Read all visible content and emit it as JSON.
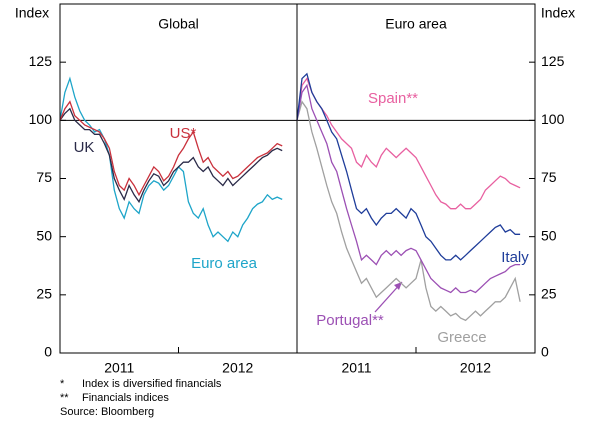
{
  "chart_data": [
    {
      "type": "line",
      "title": "Global",
      "ylabel": "Index",
      "x": [
        2011.0,
        2011.0417,
        2011.0833,
        2011.125,
        2011.1667,
        2011.2083,
        2011.25,
        2011.2917,
        2011.3333,
        2011.375,
        2011.4167,
        2011.4583,
        2011.5,
        2011.5417,
        2011.5833,
        2011.625,
        2011.6667,
        2011.7083,
        2011.75,
        2011.7917,
        2011.8333,
        2011.875,
        2011.9167,
        2011.9583,
        2012.0,
        2012.0417,
        2012.0833,
        2012.125,
        2012.1667,
        2012.2083,
        2012.25,
        2012.2917,
        2012.3333,
        2012.375,
        2012.4167,
        2012.4583,
        2012.5,
        2012.5417,
        2012.5833,
        2012.625,
        2012.6667,
        2012.7083,
        2012.75,
        2012.7917,
        2012.8333,
        2012.875
      ],
      "xlim": [
        2011,
        2013
      ],
      "xticks": [
        {
          "value": 2011.5,
          "label": "2011"
        },
        {
          "value": 2012.5,
          "label": "2012"
        }
      ],
      "ylim": [
        0,
        150
      ],
      "yticks": [
        0,
        25,
        50,
        75,
        100,
        125
      ],
      "hline": 100,
      "series": [
        {
          "name": "Euro area",
          "color": "#1ea5c9",
          "values": [
            100,
            112,
            118,
            110,
            104,
            100,
            98,
            95,
            96,
            92,
            85,
            70,
            62,
            58,
            65,
            62,
            60,
            68,
            72,
            74,
            73,
            70,
            72,
            76,
            80,
            78,
            65,
            60,
            58,
            62,
            55,
            50,
            52,
            50,
            48,
            52,
            50,
            55,
            58,
            62,
            64,
            65,
            68,
            66,
            67,
            66
          ]
        },
        {
          "name": "UK",
          "color": "#2a2a48",
          "values": [
            100,
            103,
            105,
            100,
            98,
            96,
            96,
            94,
            94,
            90,
            85,
            75,
            70,
            66,
            72,
            68,
            65,
            70,
            74,
            77,
            76,
            72,
            74,
            78,
            80,
            82,
            82,
            84,
            80,
            78,
            80,
            76,
            74,
            72,
            75,
            72,
            74,
            76,
            78,
            80,
            82,
            84,
            85,
            87,
            88,
            87
          ]
        },
        {
          "name": "US*",
          "color": "#c9313c",
          "values": [
            100,
            105,
            108,
            102,
            100,
            98,
            97,
            96,
            95,
            92,
            88,
            78,
            72,
            70,
            75,
            72,
            68,
            72,
            76,
            80,
            78,
            74,
            76,
            80,
            85,
            88,
            92,
            95,
            88,
            82,
            84,
            80,
            78,
            76,
            78,
            75,
            76,
            78,
            80,
            82,
            84,
            85,
            86,
            88,
            90,
            89
          ]
        }
      ]
    },
    {
      "type": "line",
      "title": "Euro area",
      "ylabel": "Index",
      "x": [
        2011.0,
        2011.0417,
        2011.0833,
        2011.125,
        2011.1667,
        2011.2083,
        2011.25,
        2011.2917,
        2011.3333,
        2011.375,
        2011.4167,
        2011.4583,
        2011.5,
        2011.5417,
        2011.5833,
        2011.625,
        2011.6667,
        2011.7083,
        2011.75,
        2011.7917,
        2011.8333,
        2011.875,
        2011.9167,
        2011.9583,
        2012.0,
        2012.0417,
        2012.0833,
        2012.125,
        2012.1667,
        2012.2083,
        2012.25,
        2012.2917,
        2012.3333,
        2012.375,
        2012.4167,
        2012.4583,
        2012.5,
        2012.5417,
        2012.5833,
        2012.625,
        2012.6667,
        2012.7083,
        2012.75,
        2012.7917,
        2012.8333,
        2012.875
      ],
      "xlim": [
        2011,
        2013
      ],
      "xticks": [
        {
          "value": 2011.5,
          "label": "2011"
        },
        {
          "value": 2012.5,
          "label": "2012"
        }
      ],
      "ylim": [
        0,
        150
      ],
      "yticks": [
        0,
        25,
        50,
        75,
        100,
        125
      ],
      "hline": 100,
      "series": [
        {
          "name": "Spain**",
          "color": "#e860a0",
          "values": [
            100,
            115,
            118,
            112,
            108,
            105,
            102,
            98,
            95,
            92,
            90,
            88,
            82,
            80,
            85,
            82,
            80,
            85,
            88,
            86,
            84,
            86,
            88,
            86,
            84,
            80,
            76,
            72,
            68,
            65,
            64,
            62,
            62,
            64,
            62,
            62,
            64,
            66,
            70,
            72,
            74,
            76,
            75,
            73,
            72,
            71
          ]
        },
        {
          "name": "Greece",
          "color": "#a0a0a0",
          "values": [
            100,
            108,
            105,
            95,
            88,
            80,
            72,
            65,
            60,
            52,
            45,
            40,
            35,
            30,
            32,
            28,
            24,
            26,
            28,
            30,
            32,
            30,
            28,
            30,
            32,
            40,
            28,
            20,
            18,
            20,
            18,
            16,
            17,
            15,
            14,
            16,
            18,
            16,
            18,
            20,
            22,
            22,
            24,
            28,
            32,
            22
          ]
        },
        {
          "name": "Portugal**",
          "color": "#9c50b4",
          "values": [
            100,
            112,
            115,
            105,
            100,
            95,
            90,
            82,
            78,
            70,
            62,
            55,
            48,
            40,
            42,
            40,
            38,
            42,
            44,
            42,
            44,
            42,
            44,
            45,
            44,
            40,
            36,
            32,
            30,
            28,
            27,
            26,
            28,
            26,
            26,
            27,
            26,
            28,
            30,
            32,
            33,
            34,
            35,
            37,
            38,
            38
          ]
        },
        {
          "name": "Italy",
          "color": "#1f3d9a",
          "values": [
            100,
            118,
            120,
            112,
            108,
            105,
            100,
            95,
            92,
            85,
            78,
            70,
            62,
            60,
            62,
            58,
            55,
            58,
            60,
            60,
            62,
            60,
            58,
            62,
            60,
            55,
            50,
            48,
            45,
            42,
            40,
            40,
            42,
            40,
            42,
            44,
            46,
            48,
            50,
            52,
            54,
            55,
            52,
            53,
            51,
            51
          ]
        }
      ]
    }
  ],
  "notes": [
    {
      "symbol": "*",
      "text": "Index is diversified financials"
    },
    {
      "symbol": "**",
      "text": "Financials indices"
    }
  ],
  "source": "Source: Bloomberg"
}
